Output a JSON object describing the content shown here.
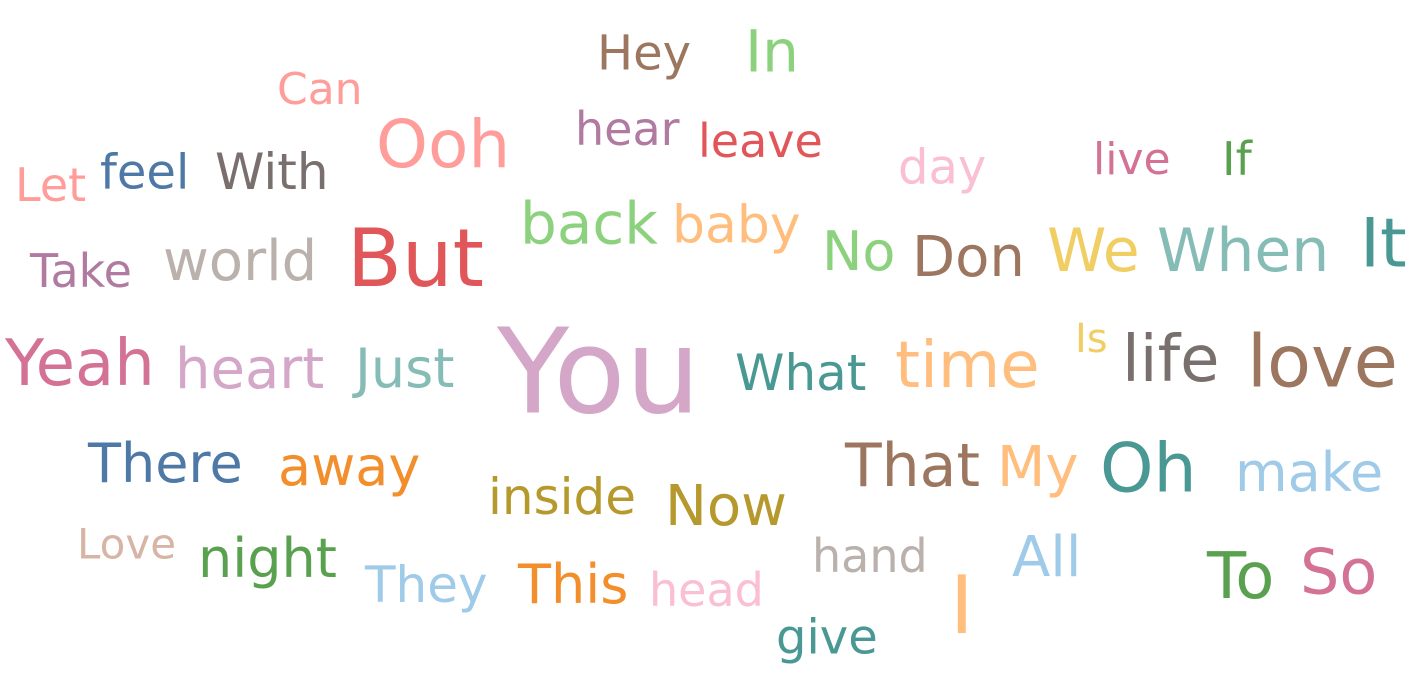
{
  "words": [
    {
      "text": "You",
      "color": "#d4a6c8"
    },
    {
      "text": "But",
      "color": "#e15759"
    },
    {
      "text": "Ooh",
      "color": "#ff9d9a"
    },
    {
      "text": "Yeah",
      "color": "#d37295"
    },
    {
      "text": "It",
      "color": "#499894"
    },
    {
      "text": "love",
      "color": "#9d7660"
    },
    {
      "text": "life",
      "color": "#79706e"
    },
    {
      "text": "time",
      "color": "#ffbe7d"
    },
    {
      "text": "heart",
      "color": "#d4a6c8"
    },
    {
      "text": "Oh",
      "color": "#499894"
    },
    {
      "text": "back",
      "color": "#8cd17d"
    },
    {
      "text": "When",
      "color": "#86bcb6"
    },
    {
      "text": "We",
      "color": "#f1ce63"
    },
    {
      "text": "world",
      "color": "#bab0ac"
    },
    {
      "text": "Don",
      "color": "#9d7660"
    },
    {
      "text": "That",
      "color": "#9d7660"
    },
    {
      "text": "So",
      "color": "#d37295"
    },
    {
      "text": "To",
      "color": "#59a14f"
    },
    {
      "text": "make",
      "color": "#a0cbe8"
    },
    {
      "text": "Now",
      "color": "#b6992d"
    },
    {
      "text": "Just",
      "color": "#86bcb6"
    },
    {
      "text": "away",
      "color": "#f28e2b"
    },
    {
      "text": "There",
      "color": "#4e79a7"
    },
    {
      "text": "night",
      "color": "#59a14f"
    },
    {
      "text": "They",
      "color": "#a0cbe8"
    },
    {
      "text": "This",
      "color": "#f28e2b"
    },
    {
      "text": "baby",
      "color": "#ffbe7d"
    },
    {
      "text": "What",
      "color": "#499894"
    },
    {
      "text": "With",
      "color": "#79706e"
    },
    {
      "text": "My",
      "color": "#ffbe7d"
    },
    {
      "text": "inside",
      "color": "#b6992d"
    },
    {
      "text": "leave",
      "color": "#e15759"
    },
    {
      "text": "day",
      "color": "#fabfd2"
    },
    {
      "text": "In",
      "color": "#8cd17d"
    },
    {
      "text": "No",
      "color": "#8cd17d"
    },
    {
      "text": "All",
      "color": "#a0cbe8"
    },
    {
      "text": "Hey",
      "color": "#9d7660"
    },
    {
      "text": "feel",
      "color": "#4e79a7"
    },
    {
      "text": "I",
      "color": "#ffbe7d"
    },
    {
      "text": "hear",
      "color": "#b07aa1"
    },
    {
      "text": "Take",
      "color": "#b07aa1"
    },
    {
      "text": "give",
      "color": "#499894"
    },
    {
      "text": "hand",
      "color": "#bab0ac"
    },
    {
      "text": "head",
      "color": "#fabfd2"
    },
    {
      "text": "Let",
      "color": "#ff9d9a"
    },
    {
      "text": "Can",
      "color": "#ff9d9a"
    },
    {
      "text": "live",
      "color": "#d37295"
    },
    {
      "text": "Love",
      "color": "#d7b5a6"
    },
    {
      "text": "If",
      "color": "#59a14f"
    },
    {
      "text": "Is",
      "color": "#f1ce63"
    }
  ]
}
